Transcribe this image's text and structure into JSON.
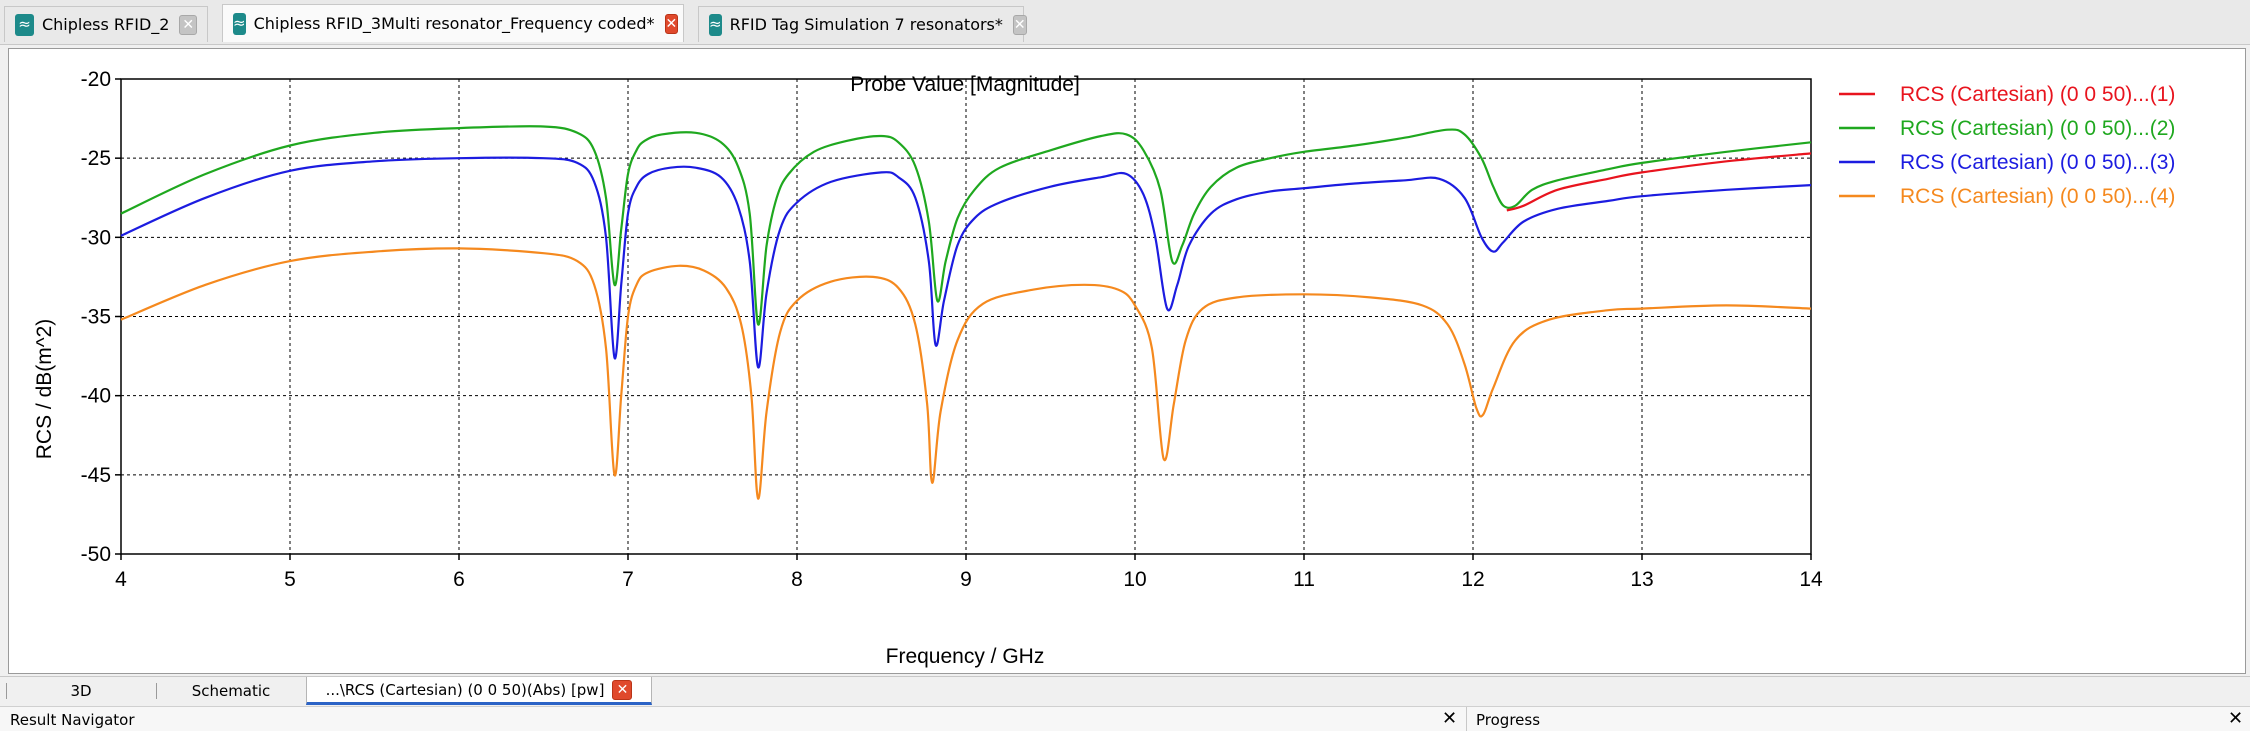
{
  "doc_tabs": [
    {
      "label": "Chipless RFID_2",
      "icon": "wave-icon",
      "close_style": "grey"
    },
    {
      "label": "Chipless RFID_3Multi resonator_Frequency coded*",
      "icon": "wave-icon",
      "close_style": "red",
      "active": true
    },
    {
      "label": "RFID Tag Simulation 7 resonators*",
      "icon": "wave-icon",
      "close_style": "grey"
    }
  ],
  "chart_data": {
    "type": "line",
    "title": "Probe Value [Magnitude]",
    "xlabel": "Frequency / GHz",
    "ylabel": "RCS / dB(m^2)",
    "xlim": [
      4,
      14
    ],
    "ylim": [
      -50,
      -20
    ],
    "xticks": [
      4,
      5,
      6,
      7,
      8,
      9,
      10,
      11,
      12,
      13,
      14
    ],
    "yticks": [
      -20,
      -25,
      -30,
      -35,
      -40,
      -45,
      -50
    ],
    "grid": true,
    "legend_position": "right",
    "series": [
      {
        "name": "RCS (Cartesian) (0 0 50)...(1)",
        "color": "#e8141e",
        "x": [
          12.2,
          12.3,
          12.5,
          12.8,
          13.0,
          13.5,
          14.0
        ],
        "y": [
          -28.3,
          -28.0,
          -27.0,
          -26.3,
          -25.9,
          -25.2,
          -24.7
        ]
      },
      {
        "name": "RCS (Cartesian) (0 0 50)...(2)",
        "color": "#1fa81f",
        "x": [
          4.0,
          4.5,
          5.0,
          5.5,
          6.0,
          6.5,
          6.7,
          6.8,
          6.87,
          6.92,
          6.96,
          7.0,
          7.05,
          7.1,
          7.2,
          7.4,
          7.55,
          7.65,
          7.72,
          7.77,
          7.82,
          7.88,
          7.95,
          8.1,
          8.3,
          8.5,
          8.6,
          8.7,
          8.78,
          8.83,
          8.88,
          8.95,
          9.05,
          9.2,
          9.5,
          9.8,
          9.95,
          10.05,
          10.15,
          10.22,
          10.28,
          10.35,
          10.45,
          10.6,
          10.8,
          11.0,
          11.3,
          11.6,
          11.85,
          11.95,
          12.05,
          12.12,
          12.18,
          12.25,
          12.35,
          12.5,
          12.8,
          13.0,
          13.5,
          14.0
        ],
        "y": [
          -28.5,
          -26.0,
          -24.2,
          -23.4,
          -23.1,
          -23.0,
          -23.4,
          -24.5,
          -27.5,
          -33.0,
          -29.5,
          -26.0,
          -24.5,
          -23.9,
          -23.5,
          -23.4,
          -24.0,
          -25.5,
          -28.5,
          -35.5,
          -30.5,
          -27.5,
          -26.0,
          -24.6,
          -23.9,
          -23.6,
          -24.0,
          -25.5,
          -29.0,
          -34.0,
          -31.5,
          -28.8,
          -27.0,
          -25.6,
          -24.5,
          -23.6,
          -23.5,
          -24.5,
          -27.0,
          -31.5,
          -30.5,
          -28.5,
          -26.8,
          -25.6,
          -25.0,
          -24.6,
          -24.2,
          -23.7,
          -23.2,
          -23.5,
          -25.0,
          -26.8,
          -28.0,
          -28.0,
          -27.0,
          -26.4,
          -25.7,
          -25.3,
          -24.6,
          -24.0
        ]
      },
      {
        "name": "RCS (Cartesian) (0 0 50)...(3)",
        "color": "#1c1ce0",
        "x": [
          4.0,
          4.5,
          5.0,
          5.5,
          6.0,
          6.5,
          6.7,
          6.8,
          6.87,
          6.92,
          6.96,
          7.0,
          7.05,
          7.12,
          7.25,
          7.4,
          7.55,
          7.65,
          7.72,
          7.77,
          7.82,
          7.9,
          8.0,
          8.2,
          8.5,
          8.6,
          8.7,
          8.78,
          8.82,
          8.87,
          8.95,
          9.05,
          9.2,
          9.5,
          9.8,
          9.95,
          10.05,
          10.12,
          10.19,
          10.25,
          10.32,
          10.45,
          10.6,
          10.8,
          11.0,
          11.3,
          11.6,
          11.8,
          11.95,
          12.05,
          12.12,
          12.18,
          12.3,
          12.5,
          12.8,
          13.0,
          13.5,
          14.0
        ],
        "y": [
          -29.9,
          -27.5,
          -25.8,
          -25.2,
          -25.0,
          -25.0,
          -25.3,
          -26.5,
          -30.0,
          -37.6,
          -33.0,
          -28.5,
          -26.8,
          -26.0,
          -25.6,
          -25.6,
          -26.2,
          -28.0,
          -31.5,
          -38.2,
          -33.5,
          -29.5,
          -27.8,
          -26.5,
          -25.9,
          -26.2,
          -27.5,
          -31.5,
          -36.8,
          -34.0,
          -30.5,
          -28.8,
          -27.8,
          -26.8,
          -26.2,
          -26.0,
          -27.3,
          -30.0,
          -34.5,
          -33.0,
          -30.5,
          -28.5,
          -27.6,
          -27.1,
          -26.9,
          -26.6,
          -26.4,
          -26.3,
          -27.5,
          -30.0,
          -30.9,
          -30.3,
          -29.0,
          -28.2,
          -27.7,
          -27.4,
          -27.0,
          -26.7
        ]
      },
      {
        "name": "RCS (Cartesian) (0 0 50)...(4)",
        "color": "#f5891e",
        "x": [
          4.0,
          4.5,
          5.0,
          5.5,
          6.0,
          6.5,
          6.7,
          6.8,
          6.87,
          6.92,
          6.96,
          7.0,
          7.05,
          7.12,
          7.3,
          7.45,
          7.58,
          7.67,
          7.73,
          7.77,
          7.82,
          7.9,
          8.0,
          8.2,
          8.45,
          8.6,
          8.7,
          8.77,
          8.8,
          8.85,
          8.95,
          9.1,
          9.4,
          9.7,
          9.9,
          10.0,
          10.1,
          10.17,
          10.23,
          10.3,
          10.4,
          10.6,
          11.0,
          11.4,
          11.7,
          11.85,
          11.95,
          12.02,
          12.06,
          12.12,
          12.25,
          12.45,
          12.8,
          13.0,
          13.5,
          14.0
        ],
        "y": [
          -35.2,
          -33.0,
          -31.5,
          -30.9,
          -30.7,
          -31.0,
          -31.5,
          -33.0,
          -37.0,
          -45.0,
          -40.0,
          -35.0,
          -33.0,
          -32.2,
          -31.8,
          -32.1,
          -33.2,
          -35.5,
          -40.0,
          -46.5,
          -41.0,
          -36.0,
          -34.0,
          -32.8,
          -32.5,
          -33.2,
          -35.5,
          -40.5,
          -45.5,
          -41.0,
          -36.5,
          -34.2,
          -33.3,
          -33.0,
          -33.3,
          -34.3,
          -37.0,
          -44.0,
          -40.5,
          -36.5,
          -34.5,
          -33.8,
          -33.6,
          -33.8,
          -34.3,
          -35.5,
          -38.0,
          -40.8,
          -41.2,
          -39.5,
          -36.5,
          -35.2,
          -34.6,
          -34.5,
          -34.3,
          -34.5
        ]
      }
    ]
  },
  "view_tabs": [
    {
      "label": "3D"
    },
    {
      "label": "Schematic"
    },
    {
      "label": "...\\RCS (Cartesian) (0 0 50)(Abs) [pw]",
      "active": true
    }
  ],
  "panels": {
    "left_title": "Result Navigator",
    "right_title": "Progress",
    "close_glyph": "✕"
  }
}
